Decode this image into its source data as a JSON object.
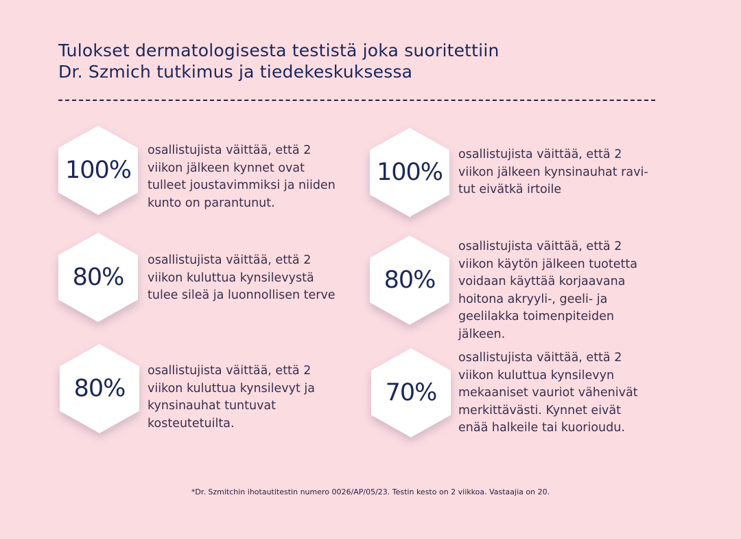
{
  "title": {
    "lines": [
      "Tulokset dermatologisesta testistä joka suoritettiin",
      "Dr. Szmich tutkimus ja tiedekeskuksessa"
    ]
  },
  "colors": {
    "background": "#fbdce1",
    "navy": "#1c2757",
    "text": "#3a2f4c",
    "hexagon": "#ffffff"
  },
  "stats": [
    {
      "value": "100%",
      "lines": [
        "osallistujista väittää, että 2",
        "viikon jälkeen kynnet ovat",
        "tulleet joustavimmiksi ja niiden",
        "kunto on parantunut."
      ]
    },
    {
      "value": "100%",
      "lines": [
        "osallistujista väittää, että 2",
        "viikon jälkeen kynsinauhat ravi-",
        "tut eivätkä irtoile"
      ]
    },
    {
      "value": "80%",
      "lines": [
        "osallistujista väittää, että 2",
        "viikon kuluttua kynsilevystä",
        "tulee sileä ja luonnollisen terve"
      ]
    },
    {
      "value": "80%",
      "lines": [
        "osallistujista väittää, että 2",
        "viikon käytön jälkeen tuotetta",
        "voidaan käyttää korjaavana",
        "hoitona akryyli-, geeli- ja",
        "geelilakka toimenpiteiden",
        "jälkeen."
      ]
    },
    {
      "value": "80%",
      "lines": [
        "osallistujista väittää, että 2",
        "viikon kuluttua kynsilevyt ja",
        "kynsinauhat tuntuvat",
        "kosteutetuilta."
      ]
    },
    {
      "value": "70%",
      "lines": [
        "osallistujista väittää, että 2",
        "viikon kuluttua kynsilevyn",
        "mekaaniset vauriot vähenivät",
        "merkittävästi. Kynnet eivät",
        "enää halkeile tai kuorioudu."
      ]
    }
  ],
  "footnote": "*Dr. Szmitchin ihotautitestin numero 0026/AP/05/23. Testin kesto on 2 viikkoa. Vastaajia on 20."
}
